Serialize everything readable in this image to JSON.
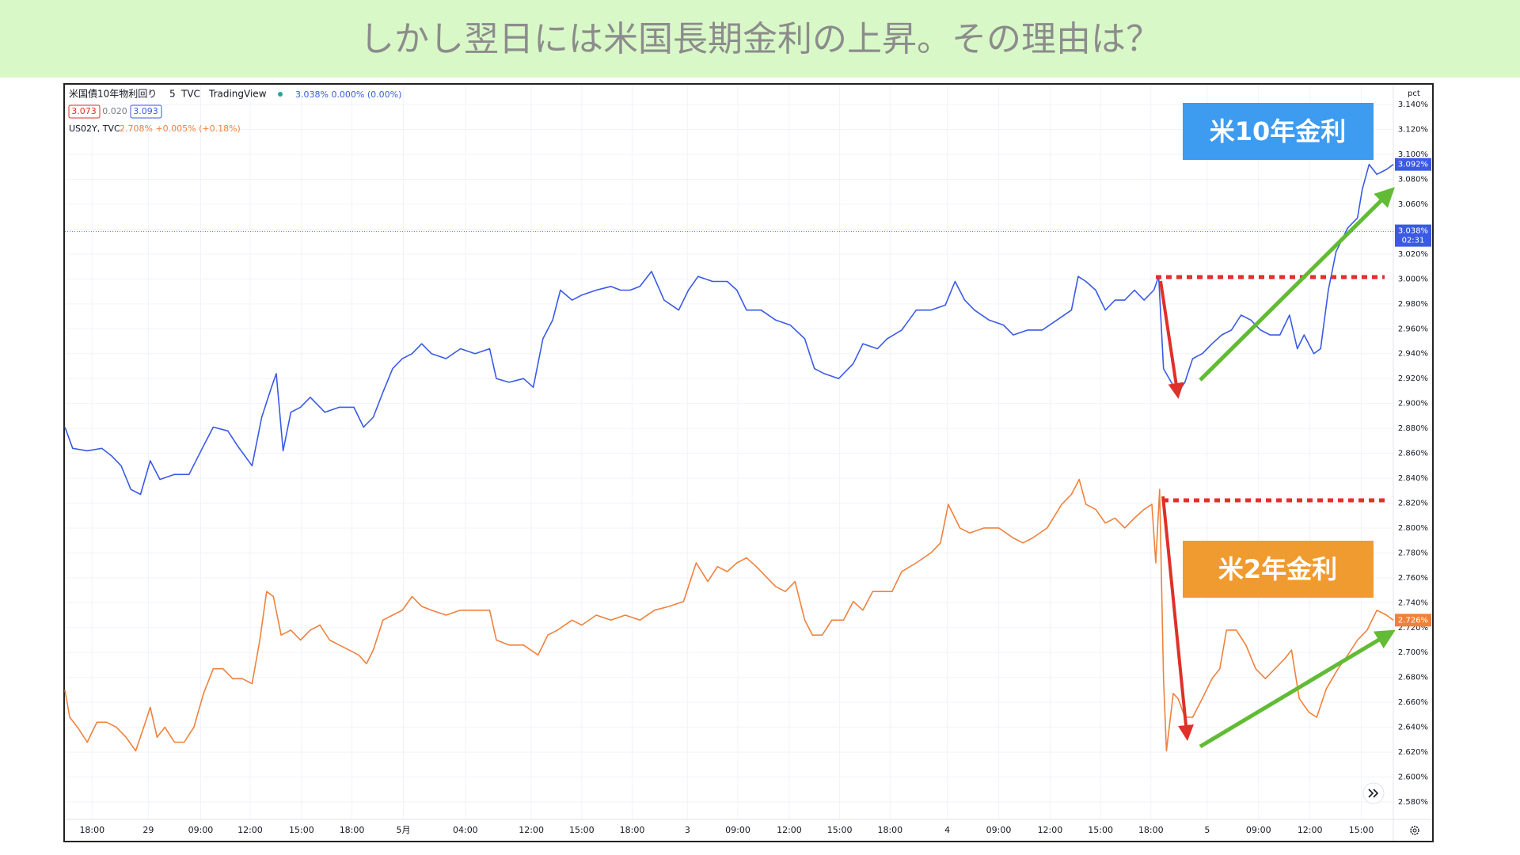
{
  "heading": "しかし翌日には米国長期金利の上昇。その理由は？",
  "chart_data": {
    "type": "line",
    "header": {
      "interval": "5",
      "source": "TVC",
      "brand": "TradingView",
      "quote": "3.038% 0.000% (0.00%)",
      "bid": "3.073",
      "spread": "0.020",
      "ask": "3.093",
      "quote2": "2.708% +0.005% (+0.18%)"
    },
    "y_unit": "pct",
    "annotations": [
      "米10年金利",
      "米2年金利"
    ],
    "series": [
      {
        "name": "米国債10年物利回り",
        "color": "#3a5ae6",
        "x": [
          0,
          8,
          23,
          38,
          48,
          58,
          68,
          78,
          88,
          98,
          113,
          128,
          143,
          153,
          168,
          178,
          193,
          203,
          213,
          218,
          225,
          233,
          243,
          253,
          268,
          283,
          298,
          308,
          318,
          328,
          338,
          348,
          358,
          368,
          378,
          393,
          408,
          423,
          438,
          445,
          458,
          473,
          483,
          493,
          503,
          511,
          523,
          533,
          548,
          563,
          573,
          583,
          593,
          605,
          618,
          633,
          643,
          653,
          668,
          683,
          693,
          703,
          718,
          733,
          748,
          763,
          773,
          783,
          798,
          813,
          823,
          838,
          848,
          863,
          878,
          893,
          908,
          918,
          928,
          938,
          953,
          968,
          978,
          993,
          1008,
          1023,
          1038,
          1045,
          1053,
          1063,
          1073,
          1083,
          1093,
          1103,
          1113,
          1123,
          1128,
          1133,
          1141,
          1148,
          1155,
          1163,
          1173,
          1183,
          1193,
          1203,
          1213,
          1223,
          1233,
          1243,
          1253,
          1263,
          1271,
          1278,
          1288,
          1295,
          1303,
          1311,
          1323,
          1333,
          1338,
          1345,
          1353,
          1363,
          1370
        ],
        "values": [
          2.881,
          2.864,
          2.862,
          2.864,
          2.858,
          2.85,
          2.831,
          2.827,
          2.854,
          2.839,
          2.843,
          2.843,
          2.866,
          2.881,
          2.878,
          2.866,
          2.85,
          2.889,
          2.913,
          2.924,
          2.862,
          2.893,
          2.897,
          2.905,
          2.893,
          2.897,
          2.897,
          2.881,
          2.889,
          2.909,
          2.928,
          2.936,
          2.94,
          2.948,
          2.94,
          2.936,
          2.944,
          2.94,
          2.944,
          2.92,
          2.917,
          2.92,
          2.913,
          2.952,
          2.967,
          2.991,
          2.983,
          2.987,
          2.991,
          2.994,
          2.991,
          2.991,
          2.994,
          3.006,
          2.983,
          2.975,
          2.991,
          3.002,
          2.998,
          2.998,
          2.991,
          2.975,
          2.975,
          2.967,
          2.963,
          2.952,
          2.928,
          2.924,
          2.92,
          2.932,
          2.948,
          2.944,
          2.952,
          2.959,
          2.975,
          2.975,
          2.979,
          2.998,
          2.983,
          2.975,
          2.967,
          2.963,
          2.955,
          2.959,
          2.959,
          2.967,
          2.975,
          3.002,
          2.998,
          2.991,
          2.975,
          2.983,
          2.983,
          2.991,
          2.983,
          2.991,
          3.002,
          2.928,
          2.917,
          2.909,
          2.917,
          2.936,
          2.94,
          2.948,
          2.955,
          2.959,
          2.971,
          2.967,
          2.959,
          2.955,
          2.955,
          2.971,
          2.944,
          2.955,
          2.94,
          2.944,
          2.991,
          3.022,
          3.041,
          3.049,
          3.072,
          3.092,
          3.084,
          3.088,
          3.092
        ]
      },
      {
        "name": "US02Y, TVC",
        "color": "#f0813c",
        "x": [
          0,
          5,
          13,
          23,
          33,
          43,
          53,
          63,
          73,
          83,
          88,
          95,
          103,
          113,
          123,
          133,
          143,
          153,
          163,
          173,
          183,
          193,
          201,
          208,
          215,
          223,
          233,
          243,
          253,
          263,
          273,
          283,
          293,
          303,
          311,
          318,
          328,
          338,
          348,
          358,
          368,
          378,
          393,
          408,
          423,
          438,
          445,
          458,
          473,
          488,
          498,
          508,
          523,
          533,
          548,
          563,
          578,
          593,
          608,
          623,
          638,
          651,
          663,
          673,
          683,
          693,
          703,
          713,
          723,
          733,
          743,
          753,
          763,
          771,
          781,
          791,
          803,
          813,
          823,
          833,
          843,
          853,
          863,
          878,
          893,
          903,
          911,
          923,
          933,
          948,
          963,
          978,
          988,
          998,
          1013,
          1028,
          1038,
          1046,
          1053,
          1063,
          1073,
          1083,
          1093,
          1103,
          1113,
          1121,
          1125,
          1129,
          1133,
          1136,
          1143,
          1148,
          1155,
          1163,
          1173,
          1183,
          1191,
          1198,
          1208,
          1218,
          1228,
          1238,
          1248,
          1258,
          1265,
          1273,
          1283,
          1291,
          1301,
          1313,
          1323,
          1333,
          1343,
          1353,
          1363,
          1370
        ],
        "values": [
          2.67,
          2.648,
          2.64,
          2.628,
          2.644,
          2.644,
          2.64,
          2.632,
          2.621,
          2.644,
          2.656,
          2.632,
          2.64,
          2.628,
          2.628,
          2.64,
          2.667,
          2.687,
          2.687,
          2.679,
          2.679,
          2.675,
          2.71,
          2.749,
          2.745,
          2.714,
          2.718,
          2.71,
          2.718,
          2.722,
          2.71,
          2.706,
          2.702,
          2.698,
          2.691,
          2.702,
          2.726,
          2.73,
          2.734,
          2.745,
          2.737,
          2.734,
          2.73,
          2.734,
          2.734,
          2.734,
          2.71,
          2.706,
          2.706,
          2.698,
          2.714,
          2.718,
          2.726,
          2.722,
          2.73,
          2.726,
          2.73,
          2.726,
          2.734,
          2.737,
          2.741,
          2.772,
          2.757,
          2.769,
          2.765,
          2.772,
          2.776,
          2.769,
          2.761,
          2.753,
          2.749,
          2.757,
          2.726,
          2.714,
          2.714,
          2.726,
          2.726,
          2.741,
          2.734,
          2.749,
          2.749,
          2.749,
          2.765,
          2.772,
          2.78,
          2.788,
          2.819,
          2.8,
          2.796,
          2.8,
          2.8,
          2.792,
          2.788,
          2.792,
          2.8,
          2.819,
          2.827,
          2.839,
          2.819,
          2.815,
          2.804,
          2.808,
          2.8,
          2.808,
          2.815,
          2.819,
          2.772,
          2.831,
          2.679,
          2.621,
          2.667,
          2.663,
          2.648,
          2.648,
          2.663,
          2.679,
          2.687,
          2.718,
          2.718,
          2.706,
          2.687,
          2.679,
          2.687,
          2.695,
          2.702,
          2.663,
          2.652,
          2.648,
          2.671,
          2.687,
          2.698,
          2.71,
          2.718,
          2.734,
          2.73,
          2.726
        ]
      }
    ],
    "price_labels": [
      {
        "value": 3.092,
        "label": "3.092%",
        "color": "#3a5ae6"
      },
      {
        "value": 3.038,
        "label": "3.038%",
        "time": "02:31",
        "color": "#3a5ae6"
      },
      {
        "value": 2.726,
        "label": "2.726%",
        "color": "#f0813c"
      }
    ],
    "xlim": [
      0,
      1370
    ],
    "xticks": [
      {
        "value": 28,
        "label": "18:00"
      },
      {
        "value": 86,
        "label": "29"
      },
      {
        "value": 140,
        "label": "09:00"
      },
      {
        "value": 191,
        "label": "12:00"
      },
      {
        "value": 244,
        "label": "15:00"
      },
      {
        "value": 296,
        "label": "18:00"
      },
      {
        "value": 349,
        "label": "5月"
      },
      {
        "value": 413,
        "label": "04:00"
      },
      {
        "value": 481,
        "label": "12:00"
      },
      {
        "value": 533,
        "label": "15:00"
      },
      {
        "value": 585,
        "label": "18:00"
      },
      {
        "value": 642,
        "label": "3"
      },
      {
        "value": 694,
        "label": "09:00"
      },
      {
        "value": 747,
        "label": "12:00"
      },
      {
        "value": 799,
        "label": "15:00"
      },
      {
        "value": 851,
        "label": "18:00"
      },
      {
        "value": 910,
        "label": "4"
      },
      {
        "value": 963,
        "label": "09:00"
      },
      {
        "value": 1016,
        "label": "12:00"
      },
      {
        "value": 1068,
        "label": "15:00"
      },
      {
        "value": 1120,
        "label": "18:00"
      },
      {
        "value": 1178,
        "label": "5"
      },
      {
        "value": 1231,
        "label": "09:00"
      },
      {
        "value": 1284,
        "label": "12:00"
      },
      {
        "value": 1337,
        "label": "15:00"
      }
    ],
    "ylim": [
      2.566,
      3.156
    ],
    "yticks": [
      {
        "value": 2.58,
        "label": "2.580%"
      },
      {
        "value": 2.6,
        "label": "2.600%"
      },
      {
        "value": 2.62,
        "label": "2.620%"
      },
      {
        "value": 2.64,
        "label": "2.640%"
      },
      {
        "value": 2.66,
        "label": "2.660%"
      },
      {
        "value": 2.68,
        "label": "2.680%"
      },
      {
        "value": 2.7,
        "label": "2.700%"
      },
      {
        "value": 2.72,
        "label": "2.720%"
      },
      {
        "value": 2.74,
        "label": "2.740%"
      },
      {
        "value": 2.76,
        "label": "2.760%"
      },
      {
        "value": 2.78,
        "label": "2.780%"
      },
      {
        "value": 2.8,
        "label": "2.800%"
      },
      {
        "value": 2.82,
        "label": "2.820%"
      },
      {
        "value": 2.84,
        "label": "2.840%"
      },
      {
        "value": 2.86,
        "label": "2.860%"
      },
      {
        "value": 2.88,
        "label": "2.880%"
      },
      {
        "value": 2.9,
        "label": "2.900%"
      },
      {
        "value": 2.92,
        "label": "2.920%"
      },
      {
        "value": 2.94,
        "label": "2.940%"
      },
      {
        "value": 2.96,
        "label": "2.960%"
      },
      {
        "value": 2.98,
        "label": "2.980%"
      },
      {
        "value": 3.0,
        "label": "3.000%"
      },
      {
        "value": 3.02,
        "label": "3.020%"
      },
      {
        "value": 3.04,
        "label": "3.040%"
      },
      {
        "value": 3.06,
        "label": "3.060%"
      },
      {
        "value": 3.08,
        "label": "3.080%"
      },
      {
        "value": 3.1,
        "label": "3.100%"
      },
      {
        "value": 3.12,
        "label": "3.120%"
      },
      {
        "value": 3.14,
        "label": "3.140%"
      }
    ],
    "grid": true
  }
}
